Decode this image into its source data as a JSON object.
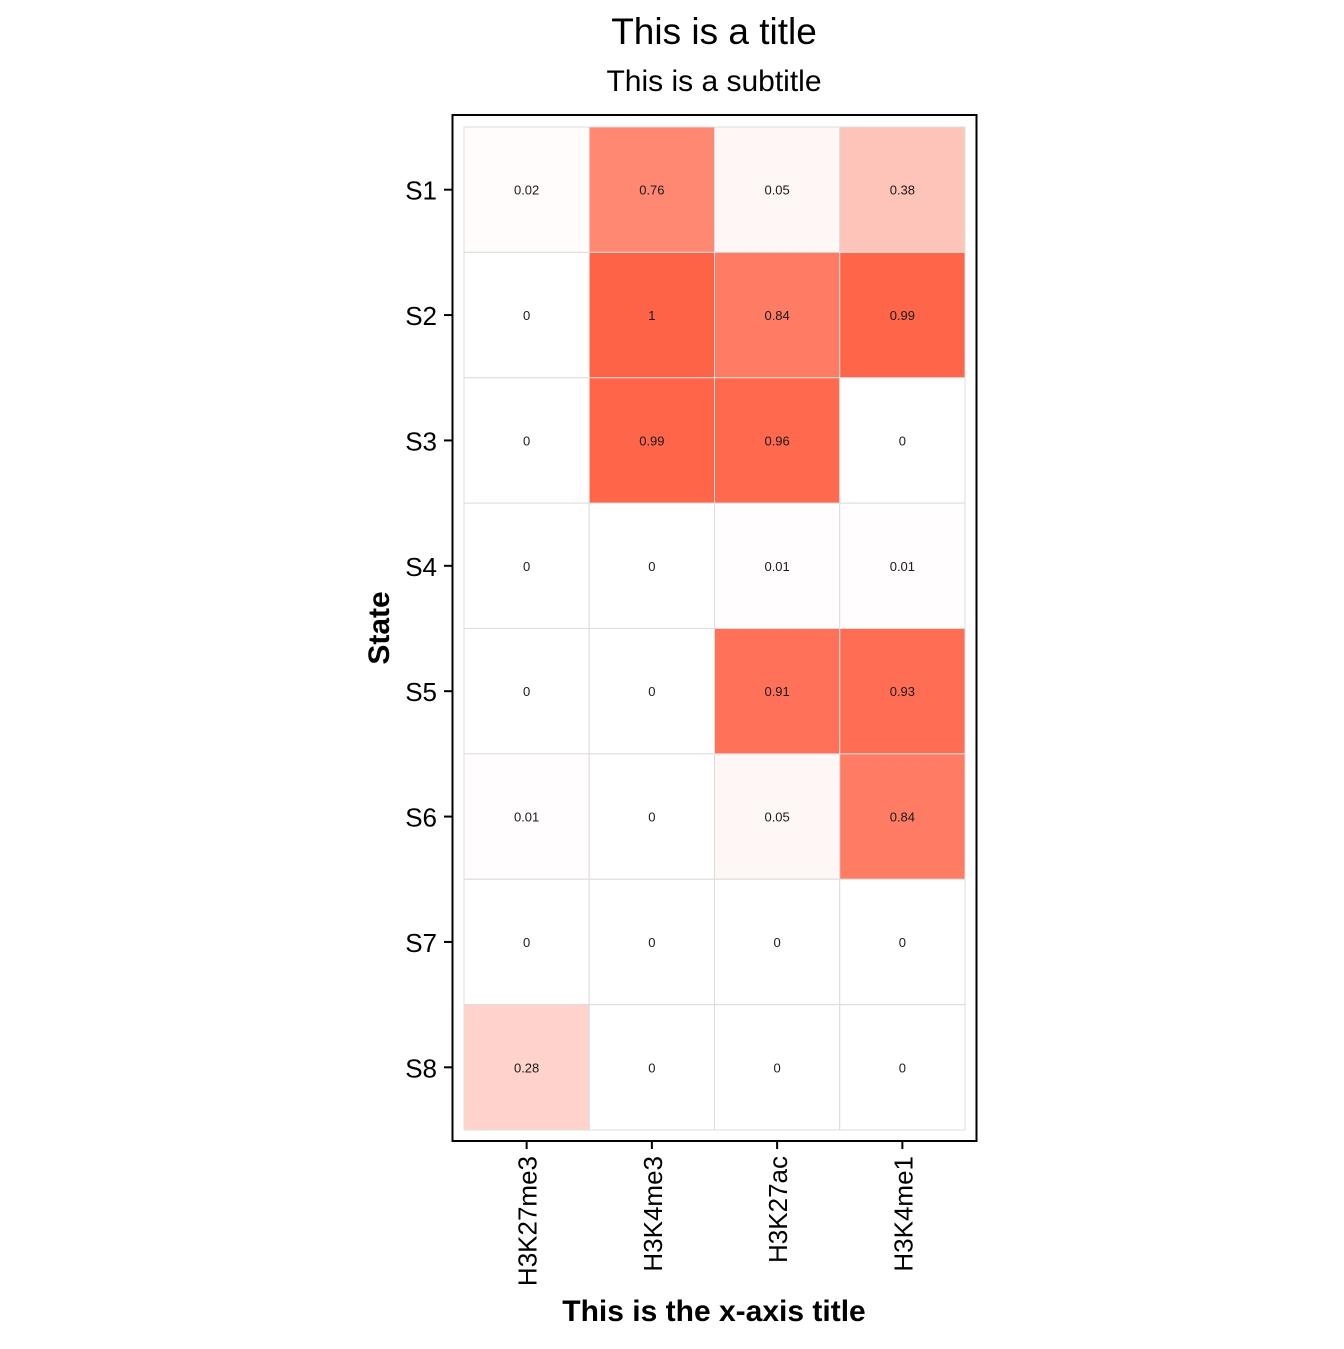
{
  "chart_data": {
    "type": "heatmap",
    "title": "This is a title",
    "subtitle": "This is a subtitle",
    "xlabel": "This is the x-axis title",
    "ylabel": "State",
    "x_categories": [
      "H3K27me3",
      "H3K4me3",
      "H3K27ac",
      "H3K4me1"
    ],
    "y_categories": [
      "S1",
      "S2",
      "S3",
      "S4",
      "S5",
      "S6",
      "S7",
      "S8"
    ],
    "values": [
      [
        0.02,
        0.76,
        0.05,
        0.38
      ],
      [
        0,
        1,
        0.84,
        0.99
      ],
      [
        0,
        0.99,
        0.96,
        0
      ],
      [
        0,
        0,
        0.01,
        0.01
      ],
      [
        0,
        0,
        0.91,
        0.93
      ],
      [
        0.01,
        0,
        0.05,
        0.84
      ],
      [
        0,
        0,
        0,
        0
      ],
      [
        0.28,
        0,
        0,
        0
      ]
    ],
    "value_labels": [
      [
        "0.02",
        "0.76",
        "0.05",
        "0.38"
      ],
      [
        "0",
        "1",
        "0.84",
        "0.99"
      ],
      [
        "0",
        "0.99",
        "0.96",
        "0"
      ],
      [
        "0",
        "0",
        "0.01",
        "0.01"
      ],
      [
        "0",
        "0",
        "0.91",
        "0.93"
      ],
      [
        "0.01",
        "0",
        "0.05",
        "0.84"
      ],
      [
        "0",
        "0",
        "0",
        "0"
      ],
      [
        "0.28",
        "0",
        "0",
        "0"
      ]
    ],
    "color_low": "#ffffff",
    "color_high": "#ff6347",
    "grid": true,
    "legend": "none"
  }
}
